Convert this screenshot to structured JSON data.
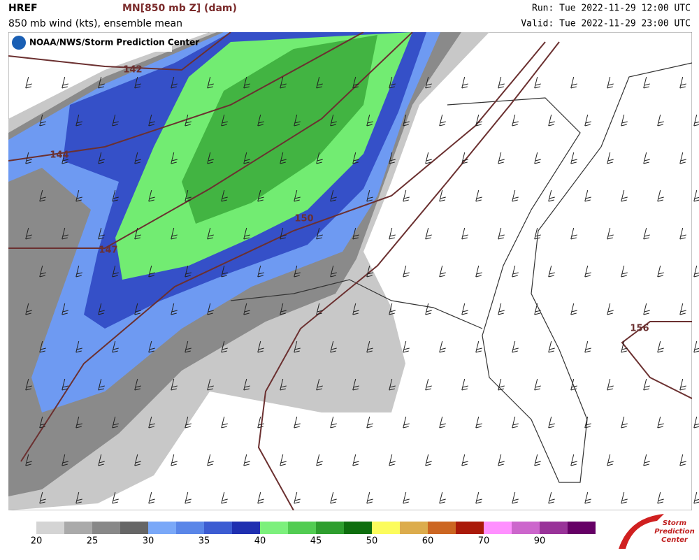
{
  "header": {
    "model": "HREF",
    "field": "MN[850 mb Z] (dam)",
    "subtitle": "850 mb wind (kts), ensemble mean",
    "run": "Run: Tue 2022-11-29 12:00 UTC",
    "valid": "Valid: Tue 2022-11-29 23:00 UTC",
    "credit": "NOAA/NWS/Storm Prediction Center"
  },
  "contour_labels": [
    142,
    144,
    147,
    150,
    156
  ],
  "colorbar": {
    "levels": [
      20,
      22.5,
      25,
      27.5,
      30,
      32.5,
      35,
      37.5,
      40,
      42.5,
      45,
      47.5,
      50,
      55,
      60,
      65,
      70,
      80,
      90,
      100,
      110
    ],
    "colors": [
      "#d4d4d4",
      "#aaaaaa",
      "#888888",
      "#666666",
      "#7aa8f8",
      "#5a86e8",
      "#3c5cd2",
      "#1f2fb0",
      "#7cf07c",
      "#52cc52",
      "#2e9e2e",
      "#0e6e0e",
      "#fcfc5c",
      "#dcac4c",
      "#cc6622",
      "#aa1a0a",
      "#ff90ff",
      "#cc66cc",
      "#993399",
      "#660066"
    ],
    "ticks": [
      20,
      25,
      30,
      35,
      40,
      45,
      50,
      60,
      70,
      90
    ]
  },
  "logo": {
    "line1": "Storm",
    "line2": "Prediction",
    "line3": "Center"
  }
}
